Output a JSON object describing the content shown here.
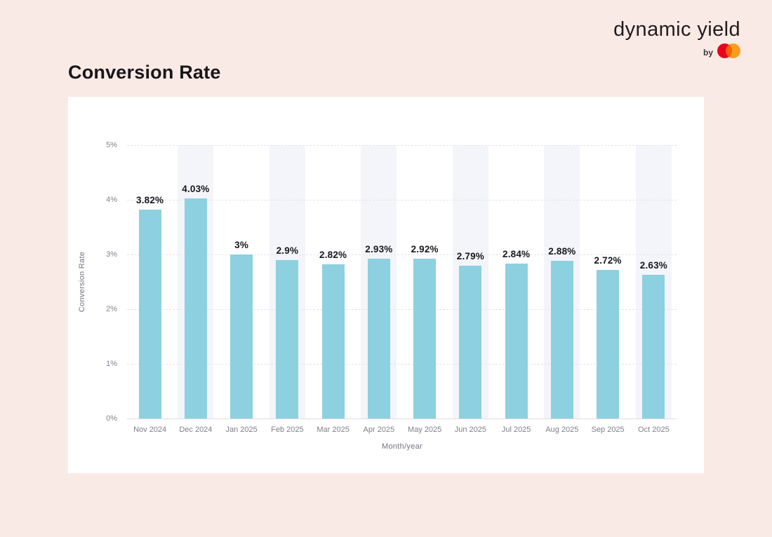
{
  "page": {
    "title": "Conversion Rate",
    "background_color": "#faeae5"
  },
  "brand": {
    "logo_text": "dynamic yield",
    "byline": "by",
    "mastercard_logo": {
      "red": "#EB001B",
      "orange": "#F79E1B",
      "overlap": "#FF5F00"
    }
  },
  "chart_data": {
    "type": "bar",
    "title": "Conversion Rate",
    "xlabel": "Month/year",
    "ylabel": "Conversion Rate",
    "categories": [
      "Nov 2024",
      "Dec 2024",
      "Jan 2025",
      "Feb 2025",
      "Mar 2025",
      "Apr 2025",
      "May 2025",
      "Jun 2025",
      "Jul 2025",
      "Aug 2025",
      "Sep 2025",
      "Oct 2025"
    ],
    "values": [
      3.82,
      4.03,
      3.0,
      2.9,
      2.82,
      2.93,
      2.92,
      2.79,
      2.84,
      2.88,
      2.72,
      2.63
    ],
    "value_labels": [
      "3.82%",
      "4.03%",
      "3%",
      "2.9%",
      "2.82%",
      "2.93%",
      "2.92%",
      "2.79%",
      "2.84%",
      "2.88%",
      "2.72%",
      "2.63%"
    ],
    "yticks": [
      "0%",
      "1%",
      "2%",
      "3%",
      "4%",
      "5%"
    ],
    "ylim": [
      0,
      5
    ],
    "grid": "horizontal-dashed",
    "legend": "none",
    "bar_color": "#8dd0e0",
    "band_color": "#f4f5fa",
    "banded_columns": [
      1,
      3,
      5,
      7,
      9,
      11
    ]
  }
}
